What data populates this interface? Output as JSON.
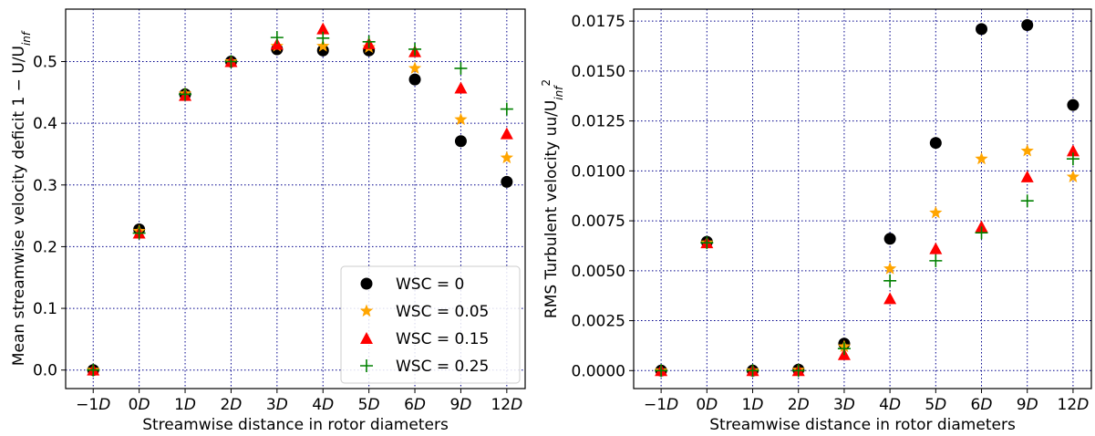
{
  "chart_data": [
    {
      "type": "scatter",
      "title": "",
      "xlabel": "Streamwise distance in rotor diameters",
      "ylabel": "Mean streamwise velocity deficit 1 − U/U",
      "ylabel_sub": "inf",
      "categories": [
        "−1D",
        "0D",
        "1D",
        "2D",
        "3D",
        "4D",
        "5D",
        "6D",
        "9D",
        "12D"
      ],
      "ylim": [
        -0.03,
        0.585
      ],
      "yticks": [
        "0.0",
        "0.1",
        "0.2",
        "0.3",
        "0.4",
        "0.5"
      ],
      "ytick_values": [
        0.0,
        0.1,
        0.2,
        0.3,
        0.4,
        0.5
      ],
      "grid": true,
      "legend_position": "lower-right",
      "series": [
        {
          "name": "WSC = 0",
          "marker": "circle",
          "color": "#000000",
          "values": [
            0.0,
            0.228,
            0.447,
            0.5,
            0.52,
            0.518,
            0.518,
            0.471,
            0.371,
            0.305
          ]
        },
        {
          "name": "WSC = 0.05",
          "marker": "star",
          "color": "#ffa500",
          "values": [
            0.0,
            0.225,
            0.448,
            0.5,
            0.525,
            0.525,
            0.523,
            0.489,
            0.406,
            0.344
          ]
        },
        {
          "name": "WSC = 0.15",
          "marker": "triangle",
          "color": "#ff0000",
          "values": [
            0.0,
            0.222,
            0.445,
            0.5,
            0.528,
            0.553,
            0.529,
            0.516,
            0.457,
            0.383
          ]
        },
        {
          "name": "WSC = 0.25",
          "marker": "plus",
          "color": "#008000",
          "values": [
            0.0,
            0.222,
            0.447,
            0.5,
            0.539,
            0.538,
            0.532,
            0.52,
            0.489,
            0.423
          ]
        }
      ]
    },
    {
      "type": "scatter",
      "title": "",
      "xlabel": "Streamwise distance in rotor diameters",
      "ylabel": "RMS Turbulent velocity  uu/U",
      "ylabel_sub": "inf",
      "ylabel_sup": "2",
      "categories": [
        "−1D",
        "0D",
        "1D",
        "2D",
        "3D",
        "4D",
        "5D",
        "6D",
        "9D",
        "12D"
      ],
      "ylim": [
        -0.0009,
        0.0181
      ],
      "yticks": [
        "0.0000",
        "0.0025",
        "0.0050",
        "0.0075",
        "0.0100",
        "0.0125",
        "0.0150",
        "0.0175"
      ],
      "ytick_values": [
        0.0,
        0.0025,
        0.005,
        0.0075,
        0.01,
        0.0125,
        0.015,
        0.0175
      ],
      "grid": true,
      "series": [
        {
          "name": "WSC = 0",
          "marker": "circle",
          "color": "#000000",
          "values": [
            0.0,
            0.00645,
            0.0,
            5e-05,
            0.00135,
            0.0066,
            0.0114,
            0.0171,
            0.0173,
            0.0133
          ]
        },
        {
          "name": "WSC = 0.05",
          "marker": "star",
          "color": "#ffa500",
          "values": [
            0.0,
            0.0064,
            0.0,
            3e-05,
            0.0012,
            0.0051,
            0.0079,
            0.0106,
            0.011,
            0.0097
          ]
        },
        {
          "name": "WSC = 0.15",
          "marker": "triangle",
          "color": "#ff0000",
          "values": [
            0.0,
            0.0064,
            0.0,
            0.0,
            0.0008,
            0.0036,
            0.0061,
            0.0072,
            0.0097,
            0.011
          ]
        },
        {
          "name": "WSC = 0.25",
          "marker": "plus",
          "color": "#008000",
          "values": [
            0.0,
            0.0064,
            0.0,
            0.0,
            0.0011,
            0.0045,
            0.0055,
            0.0069,
            0.0085,
            0.0106
          ]
        }
      ]
    }
  ]
}
